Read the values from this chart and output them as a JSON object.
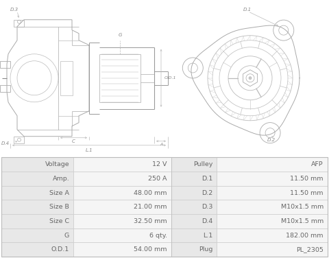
{
  "table_data": [
    [
      "Voltage",
      "12 V",
      "Pulley",
      "AFP"
    ],
    [
      "Amp.",
      "250 A",
      "D.1",
      "11.50 mm"
    ],
    [
      "Size A",
      "48.00 mm",
      "D.2",
      "11.50 mm"
    ],
    [
      "Size B",
      "21.00 mm",
      "D.3",
      "M10x1.5 mm"
    ],
    [
      "Size C",
      "32.50 mm",
      "D.4",
      "M10x1.5 mm"
    ],
    [
      "G",
      "6 qty.",
      "L.1",
      "182.00 mm"
    ],
    [
      "O.D.1",
      "54.00 mm",
      "Plug",
      "PL_2305"
    ]
  ],
  "bg_color": "#ffffff",
  "label_bg": "#e8e8e8",
  "value_bg": "#f5f5f5",
  "border_color": "#cccccc",
  "text_color": "#666666",
  "fig_width": 4.8,
  "fig_height": 3.76
}
